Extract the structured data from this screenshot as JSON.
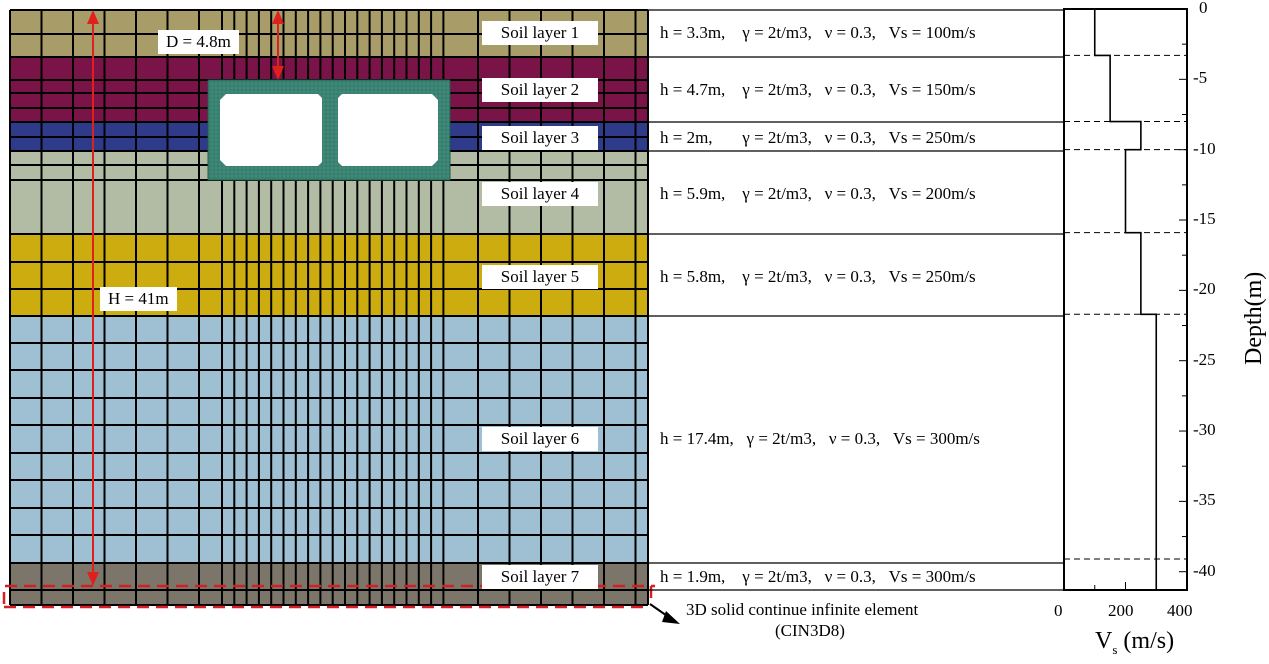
{
  "layers": [
    {
      "label": "Soil layer 1",
      "props": "h = 3.3m,    γ = 2t/m3,   ν = 0.3,   Vs = 100m/s",
      "color": "#a89c68"
    },
    {
      "label": "Soil layer 2",
      "props": "h = 4.7m,    γ = 2t/m3,   ν = 0.3,   Vs = 150m/s",
      "color": "#7a1448"
    },
    {
      "label": "Soil layer 3",
      "props": "h = 2m,       γ = 2t/m3,   ν = 0.3,   Vs = 250m/s",
      "color": "#2e3a8a"
    },
    {
      "label": "Soil layer 4",
      "props": "h = 5.9m,    γ = 2t/m3,   ν = 0.3,   Vs = 200m/s",
      "color": "#b2bba4"
    },
    {
      "label": "Soil layer 5",
      "props": "h = 5.8m,    γ = 2t/m3,   ν = 0.3,   Vs = 250m/s",
      "color": "#cdac10"
    },
    {
      "label": "Soil layer 6",
      "props": "h = 17.4m,   γ = 2t/m3,   ν = 0.3,   Vs = 300m/s",
      "color": "#9fbfd2"
    },
    {
      "label": "Soil layer 7",
      "props": "h = 1.9m,    γ = 2t/m3,   ν = 0.3,   Vs = 300m/s",
      "color": "#7c766a"
    }
  ],
  "annotations": {
    "depth_label": "D = 4.8m",
    "height_label": "H = 41m",
    "infinite_element_line1": "3D solid continue infinite element",
    "infinite_element_line2": "(CIN3D8)"
  },
  "colors": {
    "tunnel": "#3f8a78",
    "dimension_arrow": "#e0201c",
    "boundary_dash": "#d42020"
  },
  "chart_data": {
    "type": "line",
    "xlabel_main": "V",
    "xlabel_sub": "s",
    "xlabel_unit": " (m/s)",
    "ylabel": "Depth(m)",
    "xlim": [
      0,
      400
    ],
    "ylim": [
      -41.3,
      0
    ],
    "xticks": [
      "0",
      "200",
      "400"
    ],
    "yticks": [
      "0",
      "-5",
      "-10",
      "-15",
      "-20",
      "-25",
      "-30",
      "-35",
      "-40"
    ],
    "steps": [
      {
        "top": 0,
        "bottom": -3.3,
        "vs": 100
      },
      {
        "top": -3.3,
        "bottom": -8,
        "vs": 150
      },
      {
        "top": -8,
        "bottom": -10,
        "vs": 250
      },
      {
        "top": -10,
        "bottom": -15.9,
        "vs": 200
      },
      {
        "top": -15.9,
        "bottom": -21.7,
        "vs": 250
      },
      {
        "top": -21.7,
        "bottom": -39.1,
        "vs": 300
      },
      {
        "top": -39.1,
        "bottom": -41,
        "vs": 300
      }
    ],
    "dashed_depths": [
      -3.3,
      -8,
      -10,
      -15.9,
      -21.7,
      -39.1
    ]
  }
}
